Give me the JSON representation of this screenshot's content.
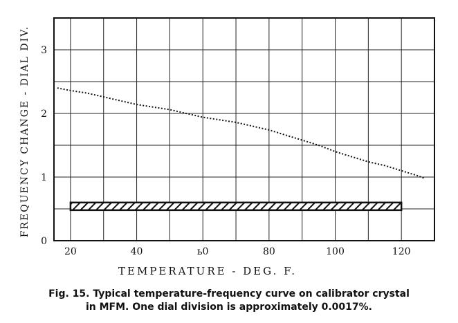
{
  "chart_data": {
    "type": "line",
    "title": "",
    "xlabel": "TEMPERATURE - DEG. F.",
    "ylabel": "FREQUENCY CHANGE - DIAL DIV.",
    "xlim": [
      15,
      130
    ],
    "ylim": [
      0,
      3.5
    ],
    "x_ticks": [
      20,
      40,
      60,
      80,
      100,
      120
    ],
    "x_tick_labels": [
      "20",
      "40",
      "ь0",
      "80",
      "100",
      "120"
    ],
    "y_ticks": [
      0,
      1,
      2,
      3
    ],
    "y_tick_labels": [
      "0",
      "1",
      "2",
      "3"
    ],
    "grid": true,
    "series": [
      {
        "style": "dotted",
        "x": [
          16,
          20,
          25,
          30,
          35,
          40,
          45,
          50,
          55,
          60,
          65,
          70,
          75,
          80,
          85,
          90,
          95,
          100,
          105,
          110,
          115,
          120,
          125,
          127
        ],
        "y": [
          2.4,
          2.36,
          2.32,
          2.26,
          2.2,
          2.14,
          2.1,
          2.06,
          2.0,
          1.94,
          1.9,
          1.86,
          1.8,
          1.74,
          1.66,
          1.58,
          1.5,
          1.4,
          1.32,
          1.24,
          1.18,
          1.1,
          1.02,
          0.98
        ]
      }
    ],
    "band": {
      "style": "hatched",
      "x_range": [
        20,
        120
      ],
      "y_range": [
        0.48,
        0.6
      ]
    }
  },
  "caption": {
    "line1": "Fig. 15. Typical temperature-frequency curve on calibrator crystal",
    "line2": "in MFM. One dial division is approximately 0.0017%."
  }
}
